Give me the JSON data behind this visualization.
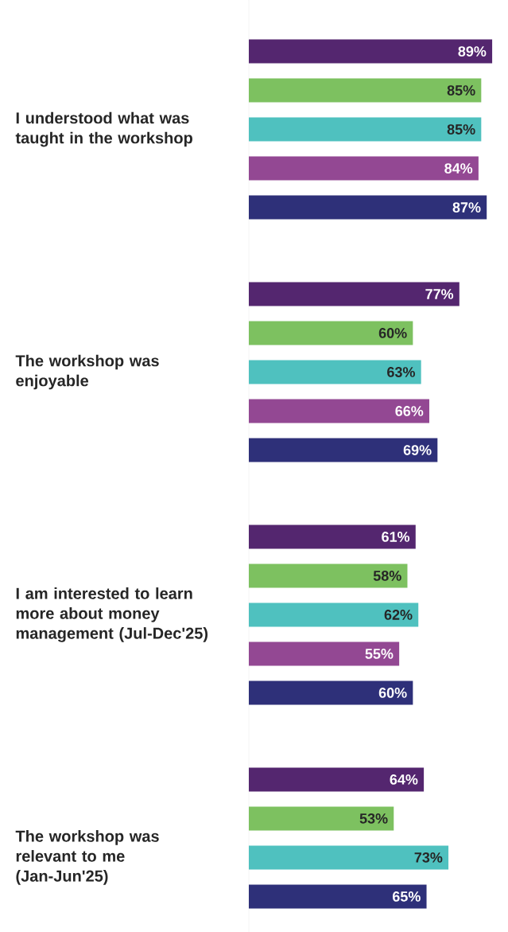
{
  "chart_data": {
    "type": "bar",
    "orientation": "horizontal",
    "categories": [
      "I understood what was taught in the workshop",
      "The workshop was enjoyable",
      "I am interested to learn more about money management (Jul-Dec'25)",
      "The workshop was relevant to me (Jan-Jun'25)"
    ],
    "series": [
      {
        "color": "#54266f",
        "values": [
          89,
          77,
          61,
          64
        ],
        "value_labels": [
          "89%",
          "77%",
          "61%",
          "64%"
        ]
      },
      {
        "color": "#7dc160",
        "values": [
          85,
          60,
          58,
          53
        ],
        "value_labels": [
          "85%",
          "60%",
          "58%",
          "53%"
        ]
      },
      {
        "color": "#4fc1bf",
        "values": [
          85,
          63,
          62,
          73
        ],
        "value_labels": [
          "85%",
          "63%",
          "62%",
          "73%"
        ]
      },
      {
        "color": "#934893",
        "values": [
          84,
          66,
          55,
          null
        ],
        "value_labels": [
          "84%",
          "66%",
          "55%",
          null
        ]
      },
      {
        "color": "#2e3079",
        "values": [
          87,
          69,
          60,
          65
        ],
        "value_labels": [
          "87%",
          "69%",
          "60%",
          "65%"
        ]
      }
    ]
  }
}
